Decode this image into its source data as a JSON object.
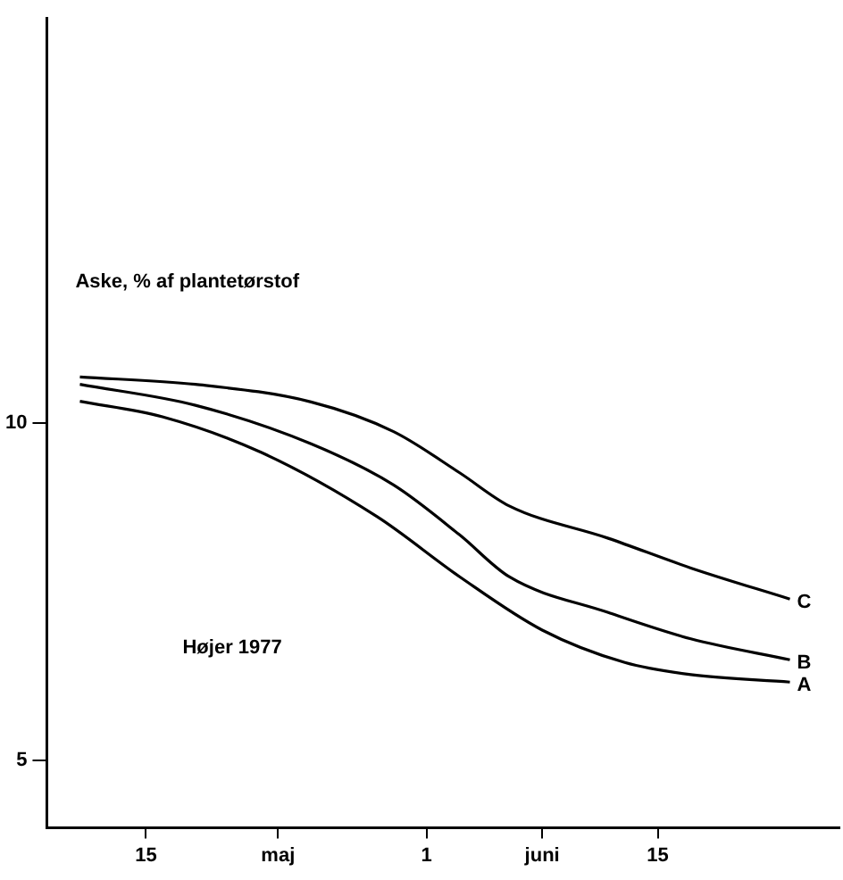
{
  "chart_data": {
    "type": "line",
    "ylabel": "Aske, % af plantetørstof",
    "annotations": [
      "Højer 1977"
    ],
    "xlim": [
      "--05-09",
      "--06-26"
    ],
    "ylim": [
      4,
      16
    ],
    "xticks": [
      {
        "value": "--05-15",
        "label": "15"
      },
      {
        "value": "--05-23",
        "label": "maj"
      },
      {
        "value": "--06-01",
        "label": "1"
      },
      {
        "value": "--06-08",
        "label": "juni"
      },
      {
        "value": "--06-15",
        "label": "15"
      }
    ],
    "yticks": [
      5,
      10
    ],
    "grid": false,
    "legend": false,
    "marker": "none",
    "line_style": "solid",
    "series": [
      {
        "name": "C",
        "color": "#000000",
        "x": [
          "--05-11",
          "--05-18",
          "--05-25",
          "--05-30",
          "--06-03",
          "--06-06",
          "--06-12",
          "--06-17",
          "--06-23"
        ],
        "values": [
          10.68,
          10.57,
          10.31,
          9.87,
          9.26,
          8.77,
          8.29,
          7.85,
          7.39
        ]
      },
      {
        "name": "B",
        "color": "#000000",
        "x": [
          "--05-11",
          "--05-18",
          "--05-25",
          "--05-30",
          "--06-03",
          "--06-06",
          "--06-12",
          "--06-17",
          "--06-23"
        ],
        "values": [
          10.57,
          10.26,
          9.69,
          9.08,
          8.34,
          7.72,
          7.19,
          6.8,
          6.49
        ]
      },
      {
        "name": "A",
        "color": "#000000",
        "x": [
          "--05-11",
          "--05-16",
          "--05-22",
          "--05-29",
          "--06-03",
          "--06-08",
          "--06-13",
          "--06-17",
          "--06-23"
        ],
        "values": [
          10.32,
          10.09,
          9.56,
          8.61,
          7.72,
          6.93,
          6.45,
          6.27,
          6.16
        ]
      }
    ]
  }
}
